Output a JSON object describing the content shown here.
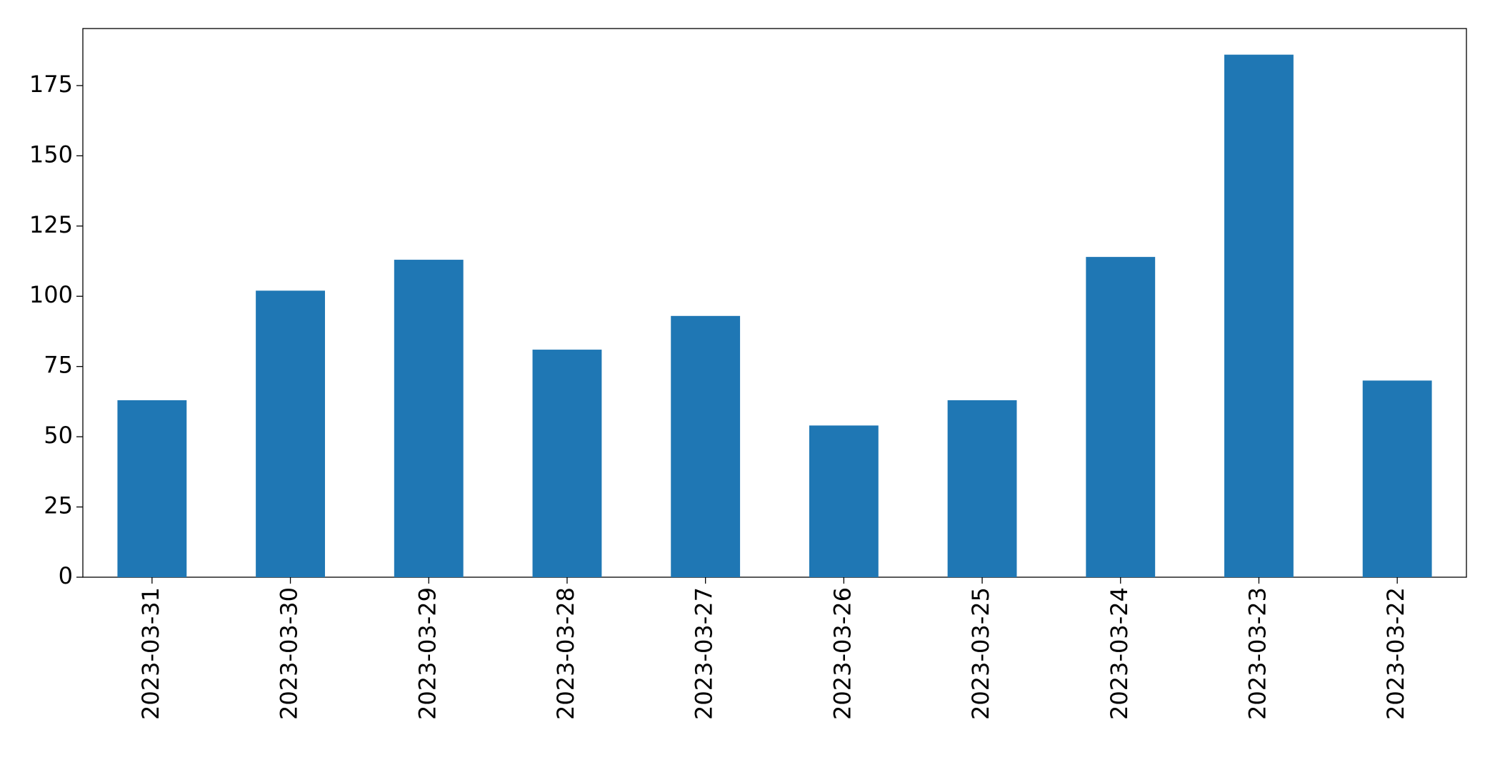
{
  "chart_data": {
    "type": "bar",
    "categories": [
      "2023-03-31",
      "2023-03-30",
      "2023-03-29",
      "2023-03-28",
      "2023-03-27",
      "2023-03-26",
      "2023-03-25",
      "2023-03-24",
      "2023-03-23",
      "2023-03-22"
    ],
    "values": [
      63,
      102,
      113,
      81,
      93,
      54,
      63,
      114,
      186,
      70
    ],
    "color": "#1f77b4",
    "ylim": [
      0,
      195.3
    ],
    "yticks": [
      0,
      25,
      50,
      75,
      100,
      125,
      150,
      175
    ],
    "grid": false
  }
}
